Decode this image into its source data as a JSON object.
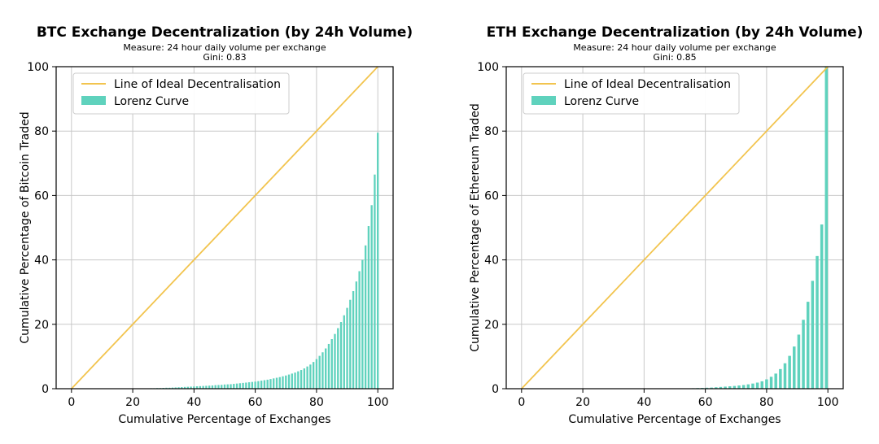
{
  "colors": {
    "ideal_line": "#f2c44e",
    "lorenz": "#5fd2bd",
    "grid": "#c8c8c8",
    "axes": "#000000"
  },
  "chart_data": [
    {
      "type": "bar",
      "title": "BTC Exchange Decentralization (by 24h Volume)",
      "subtitle_lines": [
        "Measure: 24 hour daily volume per exchange",
        "Gini: 0.83"
      ],
      "xlabel": "Cumulative Percentage of Exchanges",
      "ylabel": "Cumulative Percentage of Bitcoin Traded",
      "xlim": [
        -5,
        105
      ],
      "ylim": [
        0,
        100
      ],
      "xticks": [
        0,
        20,
        40,
        60,
        80,
        100
      ],
      "yticks": [
        0,
        20,
        40,
        60,
        80,
        100
      ],
      "grid": true,
      "legend_position": "top-left",
      "legend": [
        "Line of Ideal Decentralisation",
        "Lorenz Curve"
      ],
      "ideal_line": {
        "x": [
          0,
          100
        ],
        "y": [
          0,
          100
        ]
      },
      "series": [
        {
          "name": "Lorenz Curve",
          "x": [
            20,
            21,
            22,
            23,
            24,
            25,
            26,
            27,
            28,
            29,
            30,
            31,
            32,
            33,
            34,
            35,
            36,
            37,
            38,
            39,
            40,
            41,
            42,
            43,
            44,
            45,
            46,
            47,
            48,
            49,
            50,
            51,
            52,
            53,
            54,
            55,
            56,
            57,
            58,
            59,
            60,
            61,
            62,
            63,
            64,
            65,
            66,
            67,
            68,
            69,
            70,
            71,
            72,
            73,
            74,
            75,
            76,
            77,
            78,
            79,
            80,
            81,
            82,
            83,
            84,
            85,
            86,
            87,
            88,
            89,
            90,
            91,
            92,
            93,
            94,
            95,
            96,
            97,
            98,
            99,
            100
          ],
          "values": [
            0.1,
            0.1,
            0.1,
            0.1,
            0.1,
            0.1,
            0.15,
            0.15,
            0.2,
            0.2,
            0.25,
            0.3,
            0.3,
            0.35,
            0.4,
            0.45,
            0.5,
            0.55,
            0.6,
            0.65,
            0.7,
            0.75,
            0.8,
            0.85,
            0.9,
            0.95,
            1.0,
            1.1,
            1.15,
            1.2,
            1.3,
            1.35,
            1.4,
            1.5,
            1.6,
            1.7,
            1.8,
            1.9,
            2.0,
            2.1,
            2.2,
            2.35,
            2.5,
            2.65,
            2.8,
            3.0,
            3.2,
            3.4,
            3.6,
            3.85,
            4.1,
            4.4,
            4.7,
            5.0,
            5.4,
            5.8,
            6.3,
            6.9,
            7.5,
            8.3,
            9.2,
            10.2,
            11.3,
            12.5,
            13.9,
            15.4,
            17.0,
            18.8,
            20.7,
            22.8,
            25.1,
            27.6,
            30.3,
            33.3,
            36.5,
            40.0,
            44.5,
            50.5,
            57.0,
            66.5,
            79.5
          ]
        }
      ]
    },
    {
      "type": "bar",
      "title": "ETH Exchange Decentralization (by 24h Volume)",
      "subtitle_lines": [
        "Measure: 24 hour daily volume per exchange",
        "Gini: 0.85"
      ],
      "xlabel": "Cumulative Percentage of Exchanges",
      "ylabel": "Cumulative Percentage of Ethereum Traded",
      "xlim": [
        -5,
        105
      ],
      "ylim": [
        0,
        100
      ],
      "xticks": [
        0,
        20,
        40,
        60,
        80,
        100
      ],
      "yticks": [
        0,
        20,
        40,
        60,
        80,
        100
      ],
      "grid": true,
      "legend_position": "top-left",
      "legend": [
        "Line of Ideal Decentralisation",
        "Lorenz Curve"
      ],
      "ideal_line": {
        "x": [
          0,
          100
        ],
        "y": [
          0,
          100
        ]
      },
      "series": [
        {
          "name": "Lorenz Curve",
          "x": [
            54.5,
            56.0,
            57.5,
            59.0,
            60.5,
            62.0,
            63.5,
            65.0,
            66.5,
            68.0,
            69.5,
            71.0,
            72.5,
            74.0,
            75.5,
            77.0,
            78.5,
            80.0,
            81.5,
            83.0,
            84.5,
            86.0,
            87.5,
            89.0,
            90.5,
            92.0,
            93.5,
            95.0,
            96.5,
            98.0,
            99.5
          ],
          "values": [
            0.1,
            0.15,
            0.2,
            0.25,
            0.3,
            0.35,
            0.45,
            0.55,
            0.65,
            0.75,
            0.85,
            1.0,
            1.15,
            1.35,
            1.6,
            1.9,
            2.3,
            2.9,
            3.7,
            4.7,
            6.1,
            7.9,
            10.2,
            13.1,
            16.8,
            21.4,
            27.0,
            33.5,
            41.2,
            51.0,
            100.0
          ]
        }
      ]
    }
  ]
}
